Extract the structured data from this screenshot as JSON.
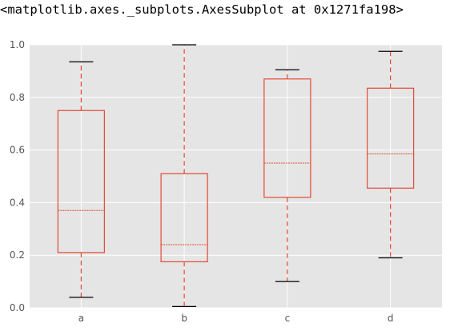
{
  "output_text": "<matplotlib.axes._subplots.AxesSubplot at 0x1271fa198>",
  "colors": {
    "plot_background": "#e5e5e5",
    "grid": "#ffffff",
    "box": "#e24a33",
    "whisker": "#e24a33",
    "cap": "#000000",
    "median": "#e24a33",
    "tick_label": "#555555"
  },
  "chart_data": {
    "type": "boxplot",
    "style": "ggplot",
    "categories": [
      "a",
      "b",
      "c",
      "d"
    ],
    "ylim": [
      0.0,
      1.0
    ],
    "yticks": [
      0.0,
      0.2,
      0.4,
      0.6,
      0.8,
      1.0
    ],
    "ytick_labels": [
      "0.0",
      "0.2",
      "0.4",
      "0.6",
      "0.8",
      "1.0"
    ],
    "grid": true,
    "boxes": [
      {
        "category": "a",
        "whisker_low": 0.04,
        "q1": 0.21,
        "median": 0.37,
        "q3": 0.75,
        "whisker_high": 0.935
      },
      {
        "category": "b",
        "whisker_low": 0.005,
        "q1": 0.175,
        "median": 0.24,
        "q3": 0.51,
        "whisker_high": 1.0
      },
      {
        "category": "c",
        "whisker_low": 0.1,
        "q1": 0.42,
        "median": 0.55,
        "q3": 0.87,
        "whisker_high": 0.905
      },
      {
        "category": "d",
        "whisker_low": 0.19,
        "q1": 0.455,
        "median": 0.585,
        "q3": 0.835,
        "whisker_high": 0.975
      }
    ]
  }
}
